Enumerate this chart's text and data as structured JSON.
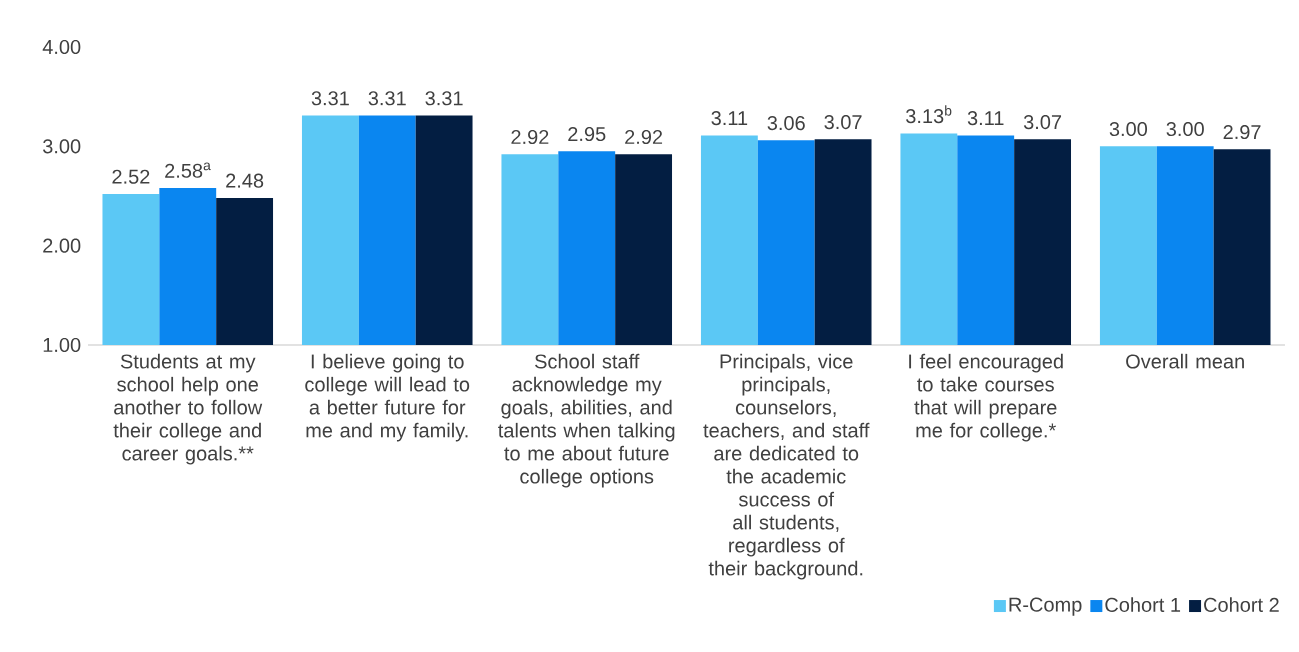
{
  "chart_data": {
    "type": "bar",
    "categories": [
      "Students at my school help one another to follow their college and career goals.**",
      "I believe going to college will lead to a better future for me and my family.",
      "School staff acknowledge my goals, abilities, and talents when talking to me about future college options",
      "Principals, vice principals, counselors, teachers, and staff are dedicated to the academic success of all students, regardless of their background.",
      "I feel encouraged to take courses that will prepare me for college.*",
      "Overall mean"
    ],
    "series": [
      {
        "name": "R-Comp",
        "color": "#5bc8f5",
        "values": [
          2.52,
          3.31,
          2.92,
          3.11,
          3.13,
          3.0
        ],
        "value_labels": [
          "2.52",
          "3.31",
          "2.92",
          "3.11",
          "3.13$^{b}$",
          "3.00"
        ]
      },
      {
        "name": "Cohort 1",
        "color": "#0a86f0",
        "values": [
          2.58,
          3.31,
          2.95,
          3.06,
          3.11,
          3.0
        ],
        "value_labels": [
          "2.58$^{a}$",
          "3.31",
          "2.95",
          "3.06",
          "3.11",
          "3.00"
        ]
      },
      {
        "name": "Cohort 2",
        "color": "#031e42",
        "values": [
          2.48,
          3.31,
          2.92,
          3.07,
          3.07,
          2.97
        ],
        "value_labels": [
          "2.48",
          "3.31",
          "2.92",
          "3.07",
          "3.07",
          "2.97"
        ]
      }
    ],
    "ylim": [
      1,
      4
    ],
    "yticks": [
      {
        "value": 1,
        "label": "1.00"
      },
      {
        "value": 2,
        "label": "2.00"
      },
      {
        "value": 3,
        "label": "3.00"
      },
      {
        "value": 4,
        "label": "4.00"
      }
    ],
    "legend": "bottom right",
    "grid": false
  }
}
